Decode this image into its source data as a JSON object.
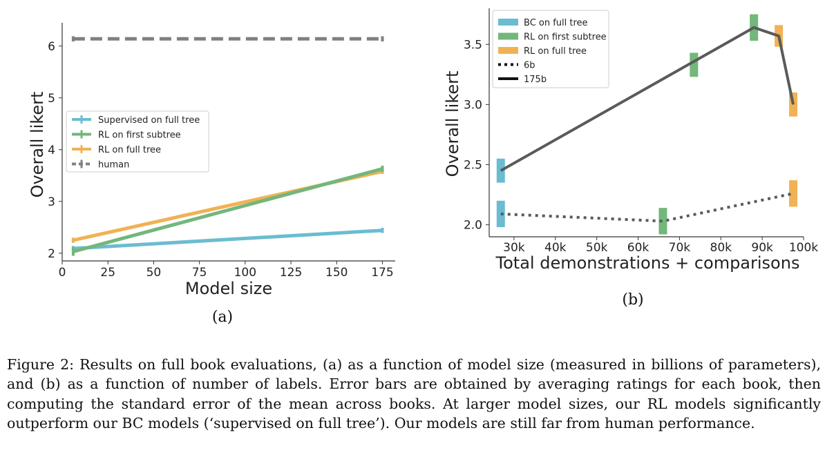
{
  "chart_data": [
    {
      "type": "line",
      "panel_label": "(a)",
      "xlabel": "Model size",
      "ylabel": "Overall likert",
      "xlim": [
        0,
        182
      ],
      "ylim": [
        1.85,
        6.45
      ],
      "xticks": [
        0,
        25,
        50,
        75,
        100,
        125,
        150,
        175
      ],
      "xtick_labels": [
        "0",
        "25",
        "50",
        "75",
        "100",
        "125",
        "150",
        "175"
      ],
      "yticks": [
        2,
        3,
        4,
        5,
        6
      ],
      "ytick_labels": [
        "2",
        "3",
        "4",
        "5",
        "6"
      ],
      "grid": false,
      "legend_position": "center-left",
      "series": [
        {
          "name": "Supervised on full tree",
          "color": "#6bbcd1",
          "dash": "solid",
          "x": [
            6,
            175
          ],
          "y": [
            2.09,
            2.44
          ],
          "err": [
            0.05,
            0.05
          ]
        },
        {
          "name": "RL on first subtree",
          "color": "#72b77b",
          "dash": "solid",
          "x": [
            6,
            175
          ],
          "y": [
            2.03,
            3.63
          ],
          "err": [
            0.08,
            0.06
          ]
        },
        {
          "name": "RL on full tree",
          "color": "#f0b254",
          "dash": "solid",
          "x": [
            6,
            175
          ],
          "y": [
            2.25,
            3.58
          ],
          "err": [
            0.05,
            0.05
          ]
        },
        {
          "name": "human",
          "color": "#808080",
          "dash": "dashed",
          "x": [
            6,
            175
          ],
          "y": [
            6.14,
            6.14
          ],
          "err": [
            0.05,
            0.05
          ]
        }
      ]
    },
    {
      "type": "line",
      "panel_label": "(b)",
      "xlabel": "Total demonstrations + comparisons",
      "ylabel": "Overall likert",
      "xlim": [
        24000,
        100000
      ],
      "ylim": [
        1.9,
        3.8
      ],
      "xticks": [
        30000,
        40000,
        50000,
        60000,
        70000,
        80000,
        90000,
        100000
      ],
      "xtick_labels": [
        "30k",
        "40k",
        "50k",
        "60k",
        "70k",
        "80k",
        "90k",
        "100k"
      ],
      "yticks": [
        2.0,
        2.5,
        3.0,
        3.5
      ],
      "ytick_labels": [
        "2.0",
        "2.5",
        "3.0",
        "3.5"
      ],
      "grid": false,
      "legend_position": "top-left",
      "legend": [
        {
          "label": "BC on full tree",
          "kind": "patch",
          "color": "#6bbcd1"
        },
        {
          "label": "RL on first subtree",
          "kind": "patch",
          "color": "#72b77b"
        },
        {
          "label": "RL on full tree",
          "kind": "patch",
          "color": "#f0b254"
        },
        {
          "label": "6b",
          "kind": "line",
          "dash": "dotted"
        },
        {
          "label": "175b",
          "kind": "line",
          "dash": "solid"
        }
      ],
      "series": [
        {
          "name": "175b",
          "dash": "solid",
          "color": "#5a5a5a",
          "x": [
            26800,
            88000,
            94000,
            97500
          ],
          "y": [
            2.45,
            3.64,
            3.57,
            3.0
          ]
        },
        {
          "name": "6b",
          "dash": "dotted",
          "color": "#5a5a5a",
          "x": [
            26800,
            66000,
            97500
          ],
          "y": [
            2.09,
            2.03,
            2.26
          ]
        }
      ],
      "points": [
        {
          "x": 26800,
          "y": 2.45,
          "err": 0.1,
          "color": "#6bbcd1"
        },
        {
          "x": 26800,
          "y": 2.09,
          "err": 0.11,
          "color": "#6bbcd1"
        },
        {
          "x": 66000,
          "y": 2.03,
          "err": 0.11,
          "color": "#72b77b"
        },
        {
          "x": 73500,
          "y": 3.33,
          "err": 0.1,
          "color": "#72b77b"
        },
        {
          "x": 88000,
          "y": 3.64,
          "err": 0.11,
          "color": "#72b77b"
        },
        {
          "x": 94000,
          "y": 3.57,
          "err": 0.09,
          "color": "#f0b254"
        },
        {
          "x": 97500,
          "y": 3.0,
          "err": 0.1,
          "color": "#f0b254"
        },
        {
          "x": 97500,
          "y": 2.26,
          "err": 0.11,
          "color": "#f0b254"
        }
      ]
    }
  ],
  "caption": "Figure 2: Results on full book evaluations, (a) as a function of model size (measured in billions of parameters), and (b) as a function of number of labels. Error bars are obtained by averaging ratings for each book, then computing the standard error of the mean across books. At larger model sizes, our RL models significantly outperform our BC models (‘supervised on full tree’). Our models are still far from human performance."
}
